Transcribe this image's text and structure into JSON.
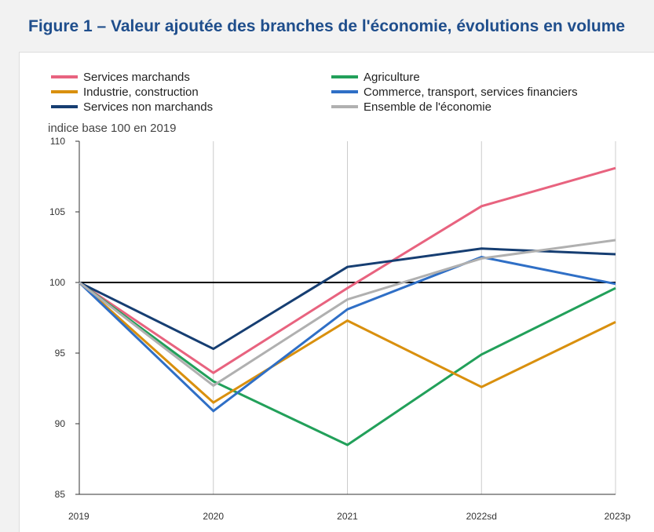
{
  "figure": {
    "title": "Figure 1 – Valeur ajoutée des branches de l'économie, évolutions en volume"
  },
  "chart_data": {
    "type": "line",
    "title": "Valeur ajoutée des branches de l'économie, évolutions en volume",
    "ylabel": "indice base 100 en 2019",
    "xlabel": "",
    "categories": [
      "2019",
      "2020",
      "2021",
      "2022sd",
      "2023p"
    ],
    "ylim": [
      85,
      110
    ],
    "yticks": [
      85,
      90,
      95,
      100,
      105,
      110
    ],
    "grid": "vertical",
    "reference_line": 100,
    "legend_position": "top",
    "series": [
      {
        "name": "Services marchands",
        "color": "#e8637f",
        "values": [
          100,
          93.6,
          99.6,
          105.4,
          108.1
        ]
      },
      {
        "name": "Agriculture",
        "color": "#22a05a",
        "values": [
          100,
          93.0,
          88.5,
          94.9,
          99.6
        ]
      },
      {
        "name": "Industrie, construction",
        "color": "#d9900e",
        "values": [
          100,
          91.5,
          97.3,
          92.6,
          97.2
        ]
      },
      {
        "name": "Commerce, transport, services financiers",
        "color": "#2f6fc6",
        "values": [
          100,
          90.9,
          98.1,
          101.8,
          99.9
        ]
      },
      {
        "name": "Services non marchands",
        "color": "#163e72",
        "values": [
          100,
          95.3,
          101.1,
          102.4,
          102.0
        ]
      },
      {
        "name": "Ensemble de l'économie",
        "color": "#b0b0b0",
        "values": [
          100,
          92.7,
          98.8,
          101.7,
          103.0
        ]
      }
    ]
  }
}
